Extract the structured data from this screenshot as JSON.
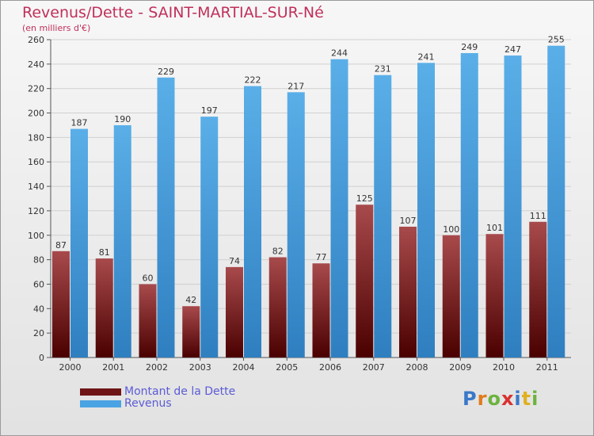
{
  "header": {
    "title": "Revenus/Dette - SAINT-MARTIAL-SUR-Né",
    "subtitle": "(en milliers d'€)"
  },
  "legend": {
    "items": [
      {
        "label": "Montant de la Dette",
        "color": "#6e1416"
      },
      {
        "label": "Revenus",
        "color": "#4aa3e3"
      }
    ]
  },
  "logo": {
    "letters": [
      {
        "char": "P",
        "color": "#3a78c8"
      },
      {
        "char": "r",
        "color": "#e07b1a"
      },
      {
        "char": "o",
        "color": "#6cb33f"
      },
      {
        "char": "x",
        "color": "#d93030"
      },
      {
        "char": "i",
        "color": "#3a78c8"
      },
      {
        "char": "t",
        "color": "#e0b020"
      },
      {
        "char": "i",
        "color": "#6cb33f"
      }
    ]
  },
  "colors": {
    "title": "#c0305a",
    "debt_top": "#a84a4c",
    "debt_bottom": "#4a0000",
    "revenue_top": "#5aafe8",
    "revenue_bottom": "#2f7fc0"
  },
  "chart_data": {
    "type": "bar",
    "title": "Revenus/Dette - SAINT-MARTIAL-SUR-Né",
    "subtitle": "(en milliers d'€)",
    "categories": [
      "2000",
      "2001",
      "2002",
      "2003",
      "2004",
      "2005",
      "2006",
      "2007",
      "2008",
      "2009",
      "2010",
      "2011"
    ],
    "series": [
      {
        "name": "Montant de la Dette",
        "values": [
          87,
          81,
          60,
          42,
          74,
          82,
          77,
          125,
          107,
          100,
          101,
          111
        ]
      },
      {
        "name": "Revenus",
        "values": [
          187,
          190,
          229,
          197,
          222,
          217,
          244,
          231,
          241,
          249,
          247,
          255
        ]
      }
    ],
    "ylim": [
      0,
      260
    ],
    "yticks": [
      0,
      20,
      40,
      60,
      80,
      100,
      120,
      140,
      160,
      180,
      200,
      220,
      240,
      260
    ],
    "grid": true,
    "legend_position": "bottom-left"
  }
}
